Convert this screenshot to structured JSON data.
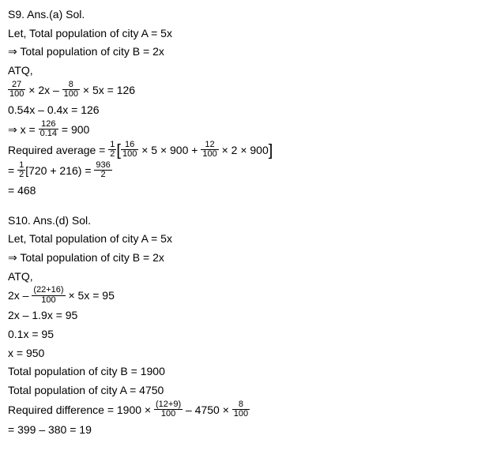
{
  "s9": {
    "header": "S9. Ans.(a) Sol.",
    "line1": "Let, Total population of city A = 5x",
    "line2": "⇒ Total population of city B = 2x",
    "line3": "ATQ,",
    "line4": {
      "f1_num": "27",
      "f1_den": "100",
      "mid1": " × 2x – ",
      "f2_num": "8",
      "f2_den": "100",
      "mid2": " × 5x = 126"
    },
    "line5": "0.54x – 0.4x = 126",
    "line6": {
      "pre": "⇒ x = ",
      "f_num": "126",
      "f_den": "0.14",
      "post": " = 900"
    },
    "line7": {
      "pre": "Required average = ",
      "half_num": "1",
      "half_den": "2",
      "lb": "[",
      "f1_num": "16",
      "f1_den": "100",
      "mid1": " × 5 × 900 + ",
      "f2_num": "12",
      "f2_den": "100",
      "mid2": " × 2 × 900",
      "rb": "]"
    },
    "line8": {
      "pre": "= ",
      "half_num": "1",
      "half_den": "2",
      "mid": "[720 + 216) = ",
      "f_num": "936",
      "f_den": "2"
    },
    "line9": "= 468"
  },
  "s10": {
    "header": "S10. Ans.(d) Sol.",
    "line1": "Let, Total population of city A = 5x",
    "line2": "⇒ Total population of city B = 2x",
    "line3": "ATQ,",
    "line4": {
      "pre": "2x – ",
      "f1_num": "(22+16)",
      "f1_den": "100",
      "post": " × 5x = 95"
    },
    "line5": "2x – 1.9x = 95",
    "line6": "0.1x = 95",
    "line7": "x = 950",
    "line8": "Total population of city B = 1900",
    "line9": "Total population of city A = 4750",
    "line10": {
      "pre": "Required difference  = 1900 × ",
      "f1_num": "(12+9)",
      "f1_den": "100",
      "mid": " – 4750 × ",
      "f2_num": "8",
      "f2_den": "100"
    },
    "line11": "= 399 – 380 = 19"
  }
}
